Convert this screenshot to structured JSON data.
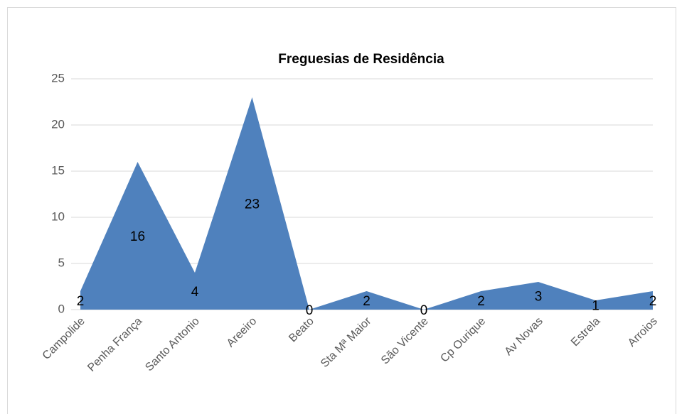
{
  "chart_data": {
    "type": "area",
    "title": "Freguesias de Residência",
    "categories": [
      "Campolide",
      "Penha França",
      "Santo Antonio",
      "Areeiro",
      "Beato",
      "Sta Mª Maior",
      "São Vicente",
      "Cp Ourique",
      "Av Novas",
      "Estrela",
      "Arroios"
    ],
    "values": [
      2,
      16,
      4,
      23,
      0,
      2,
      0,
      2,
      3,
      1,
      2
    ],
    "color": "#4f81bd",
    "ylim": [
      0,
      25
    ],
    "yticks": [
      0,
      5,
      10,
      15,
      20,
      25
    ],
    "grid": true
  }
}
